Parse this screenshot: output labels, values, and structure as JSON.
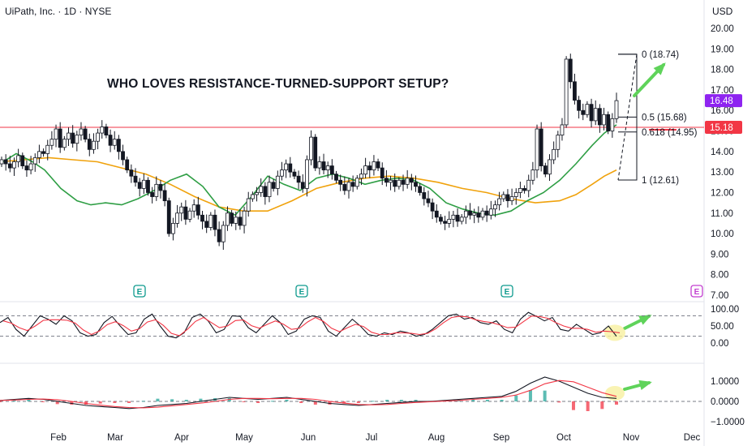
{
  "header": {
    "symbol_line": "UiPath, Inc. · 1D · NYSE",
    "currency": "USD"
  },
  "headline": "WHO LOVES RESISTANCE-TURNED-SUPPORT SETUP?",
  "colors": {
    "up": "#131722",
    "resistance": "#f23645",
    "ema_fast": "#2e9e44",
    "ema_slow": "#f0a20c",
    "stoch_k": "#131722",
    "stoch_d": "#f23645",
    "macd_line": "#131722",
    "signal_line": "#f23645",
    "hist_up": "#26a69a",
    "hist_down": "#f23645",
    "arrow": "#5fd35a",
    "highlight": "#f7f0a0",
    "earnings": "#0f9b8e",
    "future_earnings": "#c33fd0",
    "last_price_tag": "#8e24f0"
  },
  "chart_data": {
    "type": "candlestick",
    "y_axis_labels": [
      "20.00",
      "19.00",
      "18.00",
      "17.00",
      "16.00",
      "15.00",
      "14.00",
      "13.00",
      "12.00",
      "11.00",
      "10.00",
      "9.00",
      "8.00",
      "7.00"
    ],
    "ylim": [
      6.5,
      20.5
    ],
    "x_axis_labels": [
      "Feb",
      "Mar",
      "Apr",
      "May",
      "Jun",
      "Jul",
      "Aug",
      "Sep",
      "Oct",
      "Nov",
      "Dec"
    ],
    "price_tags": [
      {
        "label": "16.48",
        "color": "#8e24f0"
      },
      {
        "label": "15.18",
        "color": "#f23645"
      }
    ],
    "resistance_level": 15.18,
    "fib_levels": [
      {
        "label": "0 (18.74)",
        "value": 18.74
      },
      {
        "label": "0.5 (15.68)",
        "value": 15.68
      },
      {
        "label": "0.618 (14.95)",
        "value": 14.95
      },
      {
        "label": "1 (12.61)",
        "value": 12.61
      }
    ],
    "earnings_marker": "E",
    "closes": [
      13.6,
      13.4,
      13.2,
      13.5,
      13.8,
      13.3,
      13.1,
      13.4,
      13.7,
      14.0,
      13.9,
      14.3,
      14.6,
      15.1,
      14.2,
      14.6,
      14.9,
      14.4,
      14.8,
      15.1,
      14.6,
      14.1,
      14.5,
      14.9,
      15.2,
      14.8,
      14.3,
      14.6,
      14.0,
      13.6,
      13.1,
      12.8,
      12.5,
      12.2,
      12.6,
      12.0,
      11.8,
      12.4,
      12.1,
      11.6,
      10.0,
      10.5,
      11.0,
      11.3,
      10.7,
      11.1,
      11.4,
      10.9,
      10.6,
      10.3,
      10.9,
      10.2,
      9.6,
      10.4,
      11.0,
      10.5,
      10.8,
      10.4,
      11.1,
      11.7,
      11.9,
      12.0,
      12.3,
      11.8,
      12.5,
      12.2,
      12.8,
      13.1,
      13.4,
      13.0,
      12.8,
      12.5,
      12.2,
      13.6,
      14.7,
      13.2,
      13.5,
      13.1,
      13.3,
      12.9,
      12.6,
      12.4,
      12.1,
      12.5,
      12.3,
      12.7,
      12.9,
      13.3,
      13.1,
      13.5,
      13.2,
      12.7,
      12.5,
      12.6,
      12.3,
      12.6,
      12.4,
      12.7,
      12.5,
      12.3,
      12.0,
      11.7,
      11.5,
      11.1,
      10.8,
      10.6,
      10.5,
      10.7,
      10.9,
      10.6,
      10.8,
      11.1,
      10.9,
      11.0,
      10.8,
      11.1,
      10.9,
      11.2,
      11.4,
      11.7,
      11.9,
      11.6,
      11.8,
      12.0,
      12.2,
      12.1,
      12.6,
      13.1,
      15.1,
      13.3,
      12.9,
      13.6,
      14.1,
      14.8,
      15.3,
      18.5,
      17.4,
      16.5,
      16.0,
      15.8,
      16.3,
      15.5,
      16.1,
      15.3,
      15.8,
      15.0,
      15.6,
      16.48
    ],
    "ema_fast_points": [
      [
        0,
        13.4
      ],
      [
        20,
        13.9
      ],
      [
        40,
        13.5
      ],
      [
        55,
        13.1
      ],
      [
        75,
        12.2
      ],
      [
        95,
        11.6
      ],
      [
        112,
        11.4
      ],
      [
        130,
        11.5
      ],
      [
        150,
        11.4
      ],
      [
        170,
        11.7
      ],
      [
        190,
        12.1
      ],
      [
        210,
        12.6
      ],
      [
        230,
        12.9
      ],
      [
        250,
        12.3
      ],
      [
        270,
        11.3
      ],
      [
        290,
        10.9
      ],
      [
        310,
        11.8
      ],
      [
        330,
        12.8
      ],
      [
        350,
        12.4
      ],
      [
        370,
        12.1
      ],
      [
        390,
        12.7
      ],
      [
        410,
        12.9
      ],
      [
        430,
        12.7
      ],
      [
        450,
        12.4
      ],
      [
        470,
        12.6
      ],
      [
        490,
        12.7
      ],
      [
        510,
        12.6
      ],
      [
        530,
        12.2
      ],
      [
        550,
        11.5
      ],
      [
        570,
        11.2
      ],
      [
        590,
        11.0
      ],
      [
        610,
        10.9
      ],
      [
        630,
        11.1
      ],
      [
        650,
        11.6
      ],
      [
        670,
        12.0
      ],
      [
        690,
        12.6
      ],
      [
        710,
        13.4
      ],
      [
        730,
        14.3
      ],
      [
        745,
        14.9
      ],
      [
        760,
        15.3
      ]
    ],
    "ema_slow_points": [
      [
        0,
        13.5
      ],
      [
        30,
        13.6
      ],
      [
        60,
        13.7
      ],
      [
        90,
        13.6
      ],
      [
        120,
        13.5
      ],
      [
        150,
        13.2
      ],
      [
        180,
        12.9
      ],
      [
        210,
        12.4
      ],
      [
        240,
        11.8
      ],
      [
        270,
        11.3
      ],
      [
        300,
        11.1
      ],
      [
        330,
        11.1
      ],
      [
        360,
        11.6
      ],
      [
        390,
        12.2
      ],
      [
        420,
        12.5
      ],
      [
        450,
        12.7
      ],
      [
        480,
        12.8
      ],
      [
        510,
        12.7
      ],
      [
        540,
        12.5
      ],
      [
        570,
        12.2
      ],
      [
        600,
        12.0
      ],
      [
        630,
        11.7
      ],
      [
        660,
        11.5
      ],
      [
        690,
        11.6
      ],
      [
        710,
        11.9
      ],
      [
        730,
        12.4
      ],
      [
        745,
        12.8
      ],
      [
        760,
        13.1
      ]
    ],
    "stoch_axis_labels": [
      "100.00",
      "50.00",
      "0.00"
    ],
    "macd_axis_labels": [
      "1.0000",
      "0.0000",
      "−1.0000"
    ],
    "stoch_k": [
      60,
      75,
      40,
      20,
      50,
      80,
      70,
      55,
      80,
      65,
      30,
      20,
      25,
      60,
      78,
      50,
      25,
      30,
      70,
      85,
      50,
      20,
      15,
      30,
      75,
      85,
      65,
      30,
      40,
      80,
      78,
      45,
      30,
      55,
      80,
      60,
      25,
      35,
      70,
      80,
      75,
      35,
      20,
      45,
      70,
      50,
      25,
      20,
      30,
      25,
      35,
      30,
      20,
      25,
      40,
      60,
      80,
      85,
      70,
      75,
      60,
      55,
      65,
      40,
      30,
      70,
      90,
      78,
      65,
      75,
      40,
      35,
      55,
      40,
      25,
      30,
      50,
      20
    ],
    "macd_line": [
      0.05,
      0.1,
      0.15,
      0.1,
      0.0,
      -0.1,
      -0.2,
      -0.25,
      -0.3,
      -0.35,
      -0.3,
      -0.2,
      -0.15,
      -0.1,
      0.0,
      0.1,
      0.2,
      0.15,
      0.1,
      0.15,
      0.2,
      0.1,
      0.0,
      -0.1,
      -0.15,
      -0.2,
      -0.15,
      -0.1,
      -0.05,
      0.0,
      0.0,
      0.05,
      0.1,
      0.15,
      0.2,
      0.25,
      0.5,
      0.9,
      1.2,
      1.0,
      0.7,
      0.4,
      0.2,
      0.15
    ]
  }
}
